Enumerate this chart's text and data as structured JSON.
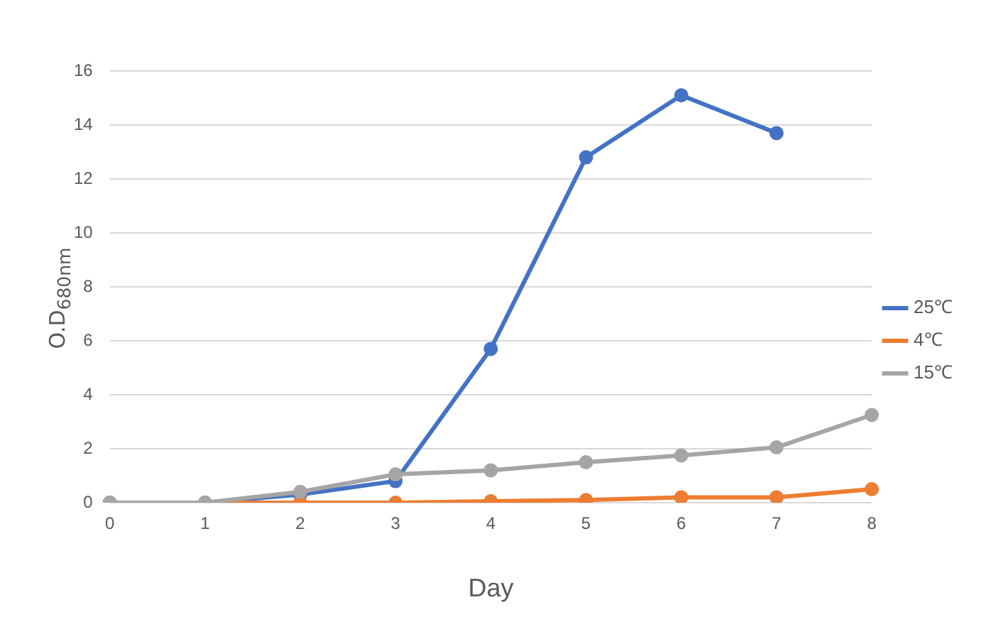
{
  "chart_data": {
    "type": "line",
    "xlabel": "Day",
    "ylabel": "O.D$_{680nm}$",
    "categories": [
      "0",
      "1",
      "2",
      "3",
      "4",
      "5",
      "6",
      "7",
      "8"
    ],
    "series": [
      {
        "name": "25℃",
        "color": "#4472c4",
        "values": [
          0,
          0,
          0.3,
          0.8,
          5.7,
          12.8,
          15.1,
          13.7,
          null
        ]
      },
      {
        "name": "4℃",
        "color": "#ed7d31",
        "values": [
          0,
          0,
          0,
          0,
          0.05,
          0.1,
          0.2,
          0.2,
          0.5
        ]
      },
      {
        "name": "15℃",
        "color": "#a5a5a5",
        "values": [
          0,
          0,
          0.4,
          1.05,
          1.2,
          1.5,
          1.75,
          2.05,
          3.25
        ]
      }
    ],
    "ylim": [
      0,
      16
    ],
    "yticks": [
      0,
      2,
      4,
      6,
      8,
      10,
      12,
      14,
      16
    ],
    "grid": "y",
    "legend": "right",
    "marker": "circle",
    "line_style": "solid"
  }
}
